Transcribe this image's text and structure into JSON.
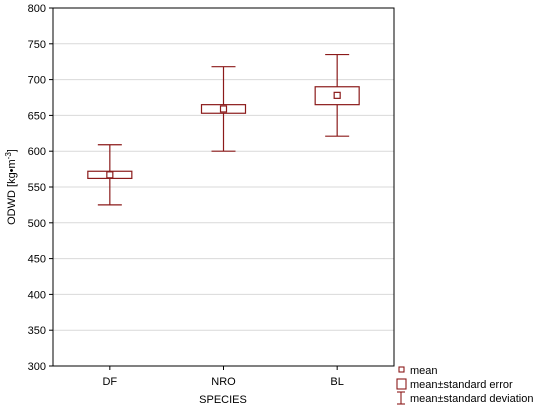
{
  "chart_data": {
    "type": "box",
    "xlabel": "SPECIES",
    "ylabel_main": "ODWD [kg•m",
    "ylabel_sup": "-3",
    "ylabel_close": "]",
    "ylim": [
      300,
      800
    ],
    "yticks": [
      300,
      350,
      400,
      450,
      500,
      550,
      600,
      650,
      700,
      750,
      800
    ],
    "grid": true,
    "categories": [
      "DF",
      "NRO",
      "BL"
    ],
    "mean": [
      567,
      659,
      678
    ],
    "se_low": [
      562,
      653,
      665
    ],
    "se_high": [
      572,
      665,
      690
    ],
    "sd_low": [
      525,
      600,
      621
    ],
    "sd_high": [
      609,
      718,
      735
    ],
    "legend": {
      "placement": "bottom-right",
      "items": [
        {
          "symbol": "small-square",
          "label": "mean"
        },
        {
          "symbol": "box",
          "label": "mean±standard error"
        },
        {
          "symbol": "whisker",
          "label": "mean±standard deviation"
        }
      ]
    },
    "color": "#8b1a1a"
  }
}
